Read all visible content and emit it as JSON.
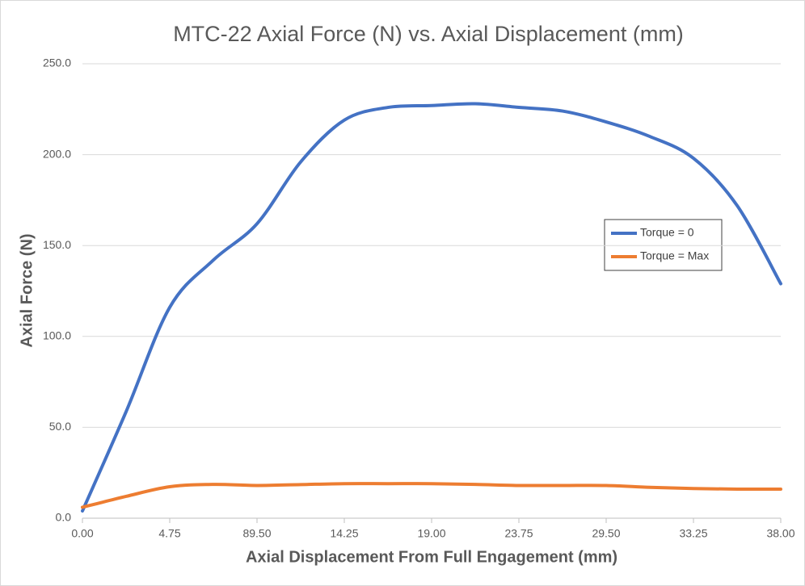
{
  "chart_data": {
    "type": "line",
    "title": "MTC-22 Axial Force (N) vs. Axial Displacement (mm)",
    "x_label": "Axial Displacement From Full Engagement (mm)",
    "y_label": "Axial Force (N)",
    "categories": [
      "0.00",
      null,
      "4.75",
      null,
      "89.50",
      null,
      "14.25",
      null,
      "19.00",
      null,
      "23.75",
      null,
      "29.50",
      null,
      "33.25",
      null,
      "38.00"
    ],
    "series": [
      {
        "name": "Torque = 0",
        "color": "#4472c4",
        "values": [
          4,
          58.6,
          116,
          142,
          162,
          196,
          219,
          226,
          227,
          228,
          226,
          224,
          218,
          210,
          198,
          172,
          129
        ]
      },
      {
        "name": "Torque = Max",
        "color": "#ed7d31",
        "values": [
          6,
          12,
          17.3,
          18.6,
          18,
          18.5,
          19,
          19,
          19,
          18.6,
          18,
          18,
          18,
          17,
          16.3,
          16,
          16
        ]
      }
    ],
    "ylim": [
      0,
      250
    ],
    "yticks": [
      {
        "value": 0,
        "label": "0.0"
      },
      {
        "value": 50,
        "label": "50.0"
      },
      {
        "value": 100,
        "label": "100.0"
      },
      {
        "value": 150,
        "label": "150.0"
      },
      {
        "value": 200,
        "label": "200.0"
      },
      {
        "value": 250,
        "label": "250.0"
      }
    ],
    "grid": true,
    "legend": "right"
  }
}
